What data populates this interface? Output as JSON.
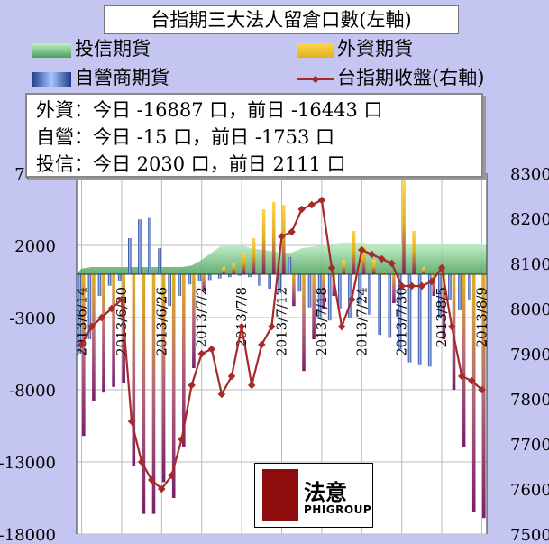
{
  "title": "台指期三大法人留倉口數(左軸)",
  "legend": [
    {
      "key": "invest",
      "label": "投信期貨"
    },
    {
      "key": "foreign",
      "label": "外資期貨"
    },
    {
      "key": "dealer",
      "label": "自營商期貨"
    },
    {
      "key": "index",
      "label": "台指期收盤(右軸)"
    }
  ],
  "info": [
    "外資：今日 -16887 口，前日 -16443 口",
    "自營：今日 -15 口，前日 -1753 口",
    "投信：今日 2030 口，前日 2111 口"
  ],
  "logo": {
    "name": "法意",
    "sub": "PHIGROUP"
  },
  "colors": {
    "foreign": "#e8b81c",
    "dealer": "#2f5bc2",
    "invest": "#7fd08a",
    "index": "#a52a2a",
    "bg": "#c5c5f2"
  },
  "chart_data": {
    "type": "bar",
    "x": [
      "2013/6/14",
      "2013/6/17",
      "2013/6/18",
      "2013/6/19",
      "2013/6/20",
      "2013/6/21",
      "2013/6/24",
      "2013/6/25",
      "2013/6/26",
      "2013/6/27",
      "2013/6/28",
      "2013/7/1",
      "2013/7/2",
      "2013/7/3",
      "2013/7/4",
      "2013/7/5",
      "2013/7/8",
      "2013/7/9",
      "2013/7/10",
      "2013/7/11",
      "2013/7/12",
      "2013/7/15",
      "2013/7/16",
      "2013/7/17",
      "2013/7/18",
      "2013/7/19",
      "2013/7/22",
      "2013/7/23",
      "2013/7/24",
      "2013/7/25",
      "2013/7/26",
      "2013/7/29",
      "2013/7/30",
      "2013/7/31",
      "2013/8/1",
      "2013/8/2",
      "2013/8/5",
      "2013/8/6",
      "2013/8/7",
      "2013/8/8",
      "2013/8/9"
    ],
    "xticks": [
      "2013/6/14",
      "2013/6/20",
      "2013/6/26",
      "2013/7/2",
      "2013/7/8",
      "2013/7/12",
      "2013/7/18",
      "2013/7/24",
      "2013/7/30",
      "2013/8/5",
      "2013/8/9"
    ],
    "series": [
      {
        "name": "外資期貨",
        "axis": "left",
        "values": [
          -11200,
          -8800,
          -8200,
          -7800,
          -7500,
          -13300,
          -16600,
          -16600,
          -14400,
          -15500,
          -12000,
          -6500,
          -1200,
          0,
          500,
          800,
          1500,
          2500,
          4500,
          5000,
          4800,
          -2200,
          -6700,
          -4500,
          -2400,
          -1500,
          1000,
          3000,
          2000,
          1000,
          200,
          -2000,
          6500,
          3000,
          500,
          -1500,
          -4500,
          -8000,
          -12000,
          -16443,
          -16887
        ]
      },
      {
        "name": "自營商期貨",
        "axis": "left",
        "values": [
          -5500,
          -4500,
          -1500,
          -800,
          -500,
          2500,
          3800,
          3900,
          1800,
          -2200,
          -1500,
          -700,
          -500,
          -400,
          -300,
          -200,
          -100,
          -200,
          -800,
          -1000,
          -1300,
          1200,
          -1200,
          -2300,
          -3000,
          -3200,
          -2400,
          -3000,
          -2100,
          -2800,
          -4200,
          -4400,
          -5200,
          -6100,
          -6300,
          -6400,
          -3000,
          -1800,
          -2500,
          -1753,
          -15
        ]
      },
      {
        "name": "投信期貨",
        "axis": "left",
        "values": [
          400,
          500,
          500,
          500,
          500,
          500,
          500,
          500,
          500,
          500,
          500,
          600,
          1000,
          1500,
          2000,
          2000,
          2000,
          1800,
          1700,
          1600,
          1500,
          1500,
          1800,
          1900,
          2000,
          2100,
          2200,
          2200,
          2200,
          2100,
          2100,
          2100,
          2100,
          2100,
          2100,
          2100,
          2100,
          2100,
          2100,
          2111,
          2030
        ]
      },
      {
        "name": "台指期收盤(右軸)",
        "axis": "right",
        "values": [
          7920,
          7960,
          7980,
          8000,
          8020,
          7750,
          7660,
          7620,
          7600,
          7630,
          7710,
          7830,
          7900,
          7910,
          7810,
          7850,
          7960,
          7830,
          7920,
          7960,
          8160,
          8170,
          8220,
          8230,
          8240,
          8090,
          7960,
          8020,
          8130,
          8120,
          8110,
          8100,
          8050,
          8050,
          8050,
          8060,
          8090,
          7960,
          7850,
          7840,
          7820
        ]
      }
    ],
    "yleft": {
      "min": -18000,
      "max": 7000,
      "ticks": [
        -18000,
        -13000,
        -8000,
        -3000,
        2000,
        7000
      ]
    },
    "yright": {
      "min": 7500,
      "max": 8300,
      "ticks": [
        7500,
        7600,
        7700,
        7800,
        7900,
        8000,
        8100,
        8200,
        8300
      ]
    },
    "grid": true
  }
}
